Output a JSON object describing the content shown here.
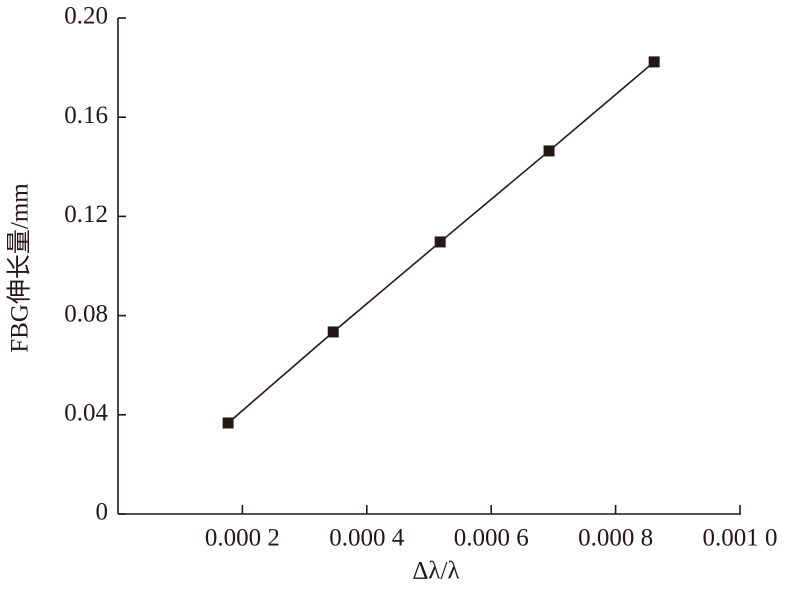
{
  "chart_data": {
    "type": "line",
    "x_label": "Δλ/λ",
    "y_label": "FBG伸长量/mm",
    "series": [
      {
        "name": "FBG",
        "color": "#231815",
        "x": [
          0.000177,
          0.000346,
          0.000518,
          0.000693,
          0.000862
        ],
        "values": [
          0.0367,
          0.0734,
          0.1097,
          0.1464,
          0.1823
        ]
      }
    ],
    "xlim": [
      0,
      0.001
    ],
    "xticks": [
      {
        "value": 0.0002,
        "label": "0.000 2"
      },
      {
        "value": 0.0004,
        "label": "0.000 4"
      },
      {
        "value": 0.0006,
        "label": "0.000 6"
      },
      {
        "value": 0.0008,
        "label": "0.000 8"
      },
      {
        "value": 0.001,
        "label": "0.001 0"
      }
    ],
    "ylim": [
      0,
      0.2
    ],
    "yticks": [
      0,
      0.04,
      0.08,
      0.12,
      0.16,
      {
        "value": 0.2,
        "label": "0.20"
      }
    ],
    "grid": false,
    "marker": "square"
  }
}
